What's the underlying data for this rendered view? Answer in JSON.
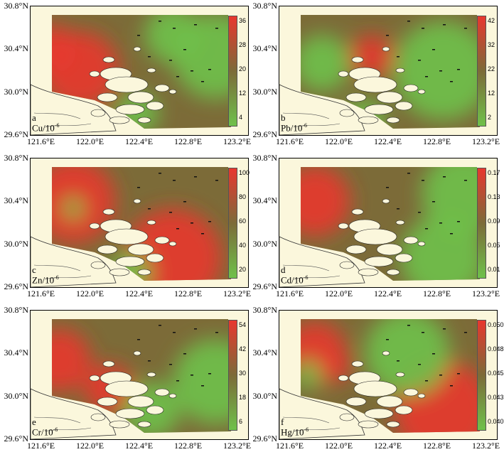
{
  "panels": [
    {
      "letter": "a",
      "element": "Cu",
      "unit": "/10",
      "exp": "-6",
      "ticks": [
        "36",
        "28",
        "20",
        "12",
        "4"
      ]
    },
    {
      "letter": "b",
      "element": "Pb",
      "unit": "/10",
      "exp": "-6",
      "ticks": [
        "42",
        "32",
        "22",
        "12",
        "2"
      ]
    },
    {
      "letter": "c",
      "element": "Zn",
      "unit": "/10",
      "exp": "-6",
      "ticks": [
        "100",
        "80",
        "60",
        "40",
        "20"
      ]
    },
    {
      "letter": "d",
      "element": "Cd",
      "unit": "/10",
      "exp": "-6",
      "ticks": [
        "0.17",
        "0.13",
        "0.09",
        "0.05",
        "0.01"
      ]
    },
    {
      "letter": "e",
      "element": "Cr",
      "unit": "/10",
      "exp": "-6",
      "ticks": [
        "54",
        "42",
        "30",
        "18",
        "6"
      ]
    },
    {
      "letter": "f",
      "element": "Hg",
      "unit": "/10",
      "exp": "-6",
      "ticks": [
        "0.050",
        "0.048",
        "0.045",
        "0.043",
        "0.040"
      ]
    }
  ],
  "lat_ticks": [
    "30.8°N",
    "30.4°N",
    "30.0°N",
    "29.6°N"
  ],
  "lon_ticks": [
    "121.6°E",
    "122.0°E",
    "122.4°E",
    "122.8°E",
    "123.2°E"
  ],
  "colors": {
    "high": "#e8372e",
    "mid": "#7c6b38",
    "low": "#6fc14a",
    "land": "#fbf7dc"
  }
}
